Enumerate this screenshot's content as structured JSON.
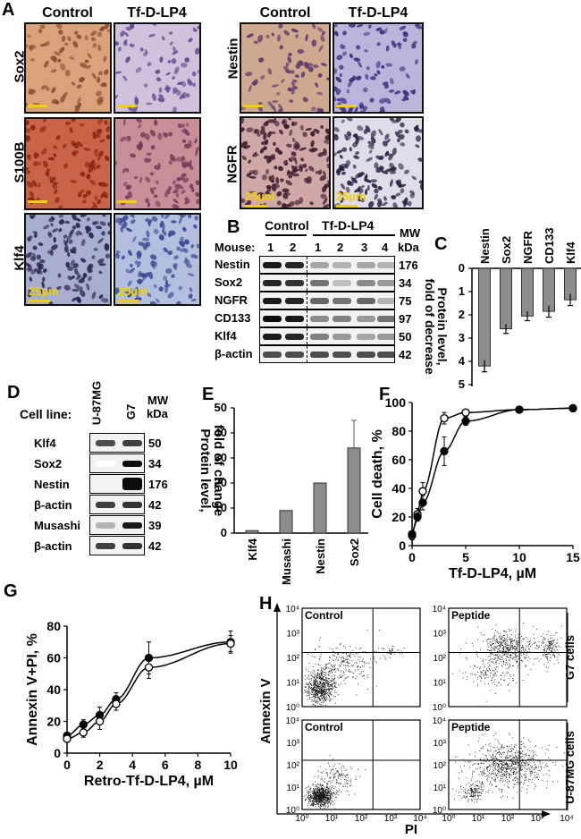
{
  "panel_letters": {
    "a": "A",
    "b": "B",
    "c": "C",
    "d": "D",
    "e": "E",
    "f": "F",
    "g": "G",
    "h": "H"
  },
  "panel_a": {
    "left_headers": [
      "Control",
      "Tf-D-LP4"
    ],
    "right_headers": [
      "Control",
      "Tf-D-LP4"
    ],
    "left_rows": [
      "Sox2",
      "S100B",
      "Klf4"
    ],
    "right_rows": [
      "Nestin",
      "NGFR"
    ],
    "scale_label": "25µm"
  },
  "panel_b": {
    "group_control": "Control",
    "group_treated": "Tf-D-LP4",
    "mw_header": "MW",
    "mw_unit": "kDa",
    "mouse_label": "Mouse:",
    "mouse_numbers": [
      "1",
      "2",
      "1",
      "2",
      "3",
      "4"
    ],
    "rows": [
      {
        "name": "Nestin",
        "mw": "176"
      },
      {
        "name": "Sox2",
        "mw": "34"
      },
      {
        "name": "NGFR",
        "mw": "75"
      },
      {
        "name": "CD133",
        "mw": "97"
      },
      {
        "name": "Klf4",
        "mw": "50"
      },
      {
        "name": "β-actin",
        "mw": "42"
      }
    ]
  },
  "panel_d": {
    "cell_line_label": "Cell line:",
    "lines": [
      "U-87MG",
      "G7"
    ],
    "mw_header": "MW",
    "mw_unit": "kDa",
    "rows": [
      {
        "name": "Klf4",
        "mw": "50"
      },
      {
        "name": "Sox2",
        "mw": "34"
      },
      {
        "name": "Nestin",
        "mw": "176"
      },
      {
        "name": "β-actin",
        "mw": "42"
      },
      {
        "name": "Musashi",
        "mw": "39"
      },
      {
        "name": "β-actin",
        "mw": "42"
      }
    ]
  },
  "chart_data": [
    {
      "id": "C",
      "type": "bar",
      "categories": [
        "Nestin",
        "Sox2",
        "NGFR",
        "CD133",
        "Klf4"
      ],
      "values": [
        4.2,
        2.6,
        2.05,
        1.85,
        1.35
      ],
      "errors": [
        0.25,
        0.2,
        0.2,
        0.25,
        0.25
      ],
      "ylabel_lines": [
        "Protein level,",
        "fold of decrease"
      ],
      "ylim": [
        0,
        5
      ],
      "ticks": [
        "0",
        "1",
        "2",
        "3",
        "4",
        "5"
      ],
      "inverted": true
    },
    {
      "id": "E",
      "type": "bar",
      "categories": [
        "Klf4",
        "Musashi",
        "Nestin",
        "Sox2"
      ],
      "values": [
        1,
        9,
        20,
        34
      ],
      "errors": [
        0,
        0,
        0,
        11
      ],
      "ylabel_lines": [
        "Protein level,",
        "fold of change"
      ],
      "ylim": [
        0,
        50
      ],
      "ticks": [
        "0",
        "10",
        "20",
        "30",
        "40",
        "50"
      ]
    },
    {
      "id": "F",
      "type": "line",
      "xlabel": "Tf-D-LP4, µM",
      "ylabel": "Cell death, %",
      "xlim": [
        0,
        15
      ],
      "ylim": [
        0,
        100
      ],
      "xticks": [
        "0",
        "5",
        "10",
        "15"
      ],
      "yticks": [
        "0",
        "20",
        "40",
        "60",
        "80",
        "100"
      ],
      "series": [
        {
          "marker": "open",
          "x": [
            0,
            0.5,
            1,
            3,
            5,
            10,
            15
          ],
          "y": [
            7,
            22,
            38,
            89,
            93,
            95,
            96
          ],
          "err": [
            3,
            4,
            6,
            4,
            2,
            1,
            1
          ]
        },
        {
          "marker": "filled",
          "x": [
            0,
            0.5,
            1,
            3,
            5,
            10,
            15
          ],
          "y": [
            8,
            20,
            30,
            66,
            87,
            95,
            96
          ],
          "err": [
            2,
            3,
            5,
            10,
            3,
            1,
            1
          ]
        }
      ]
    },
    {
      "id": "G",
      "type": "line",
      "xlabel": "Retro-Tf-D-LP4, µM",
      "ylabel": "Annexin V+PI, %",
      "xlim": [
        0,
        10
      ],
      "ylim": [
        0,
        80
      ],
      "xticks": [
        "0",
        "2",
        "4",
        "6",
        "8",
        "10"
      ],
      "yticks": [
        "0",
        "20",
        "40",
        "60",
        "80"
      ],
      "series": [
        {
          "marker": "filled",
          "x": [
            0,
            1,
            2,
            3,
            5,
            10
          ],
          "y": [
            11,
            18,
            24,
            34,
            60,
            70
          ],
          "err": [
            2,
            3,
            5,
            4,
            10,
            7
          ]
        },
        {
          "marker": "open",
          "x": [
            0,
            1,
            2,
            3,
            5,
            10
          ],
          "y": [
            9,
            13,
            20,
            31,
            54,
            69
          ],
          "err": [
            2,
            3,
            5,
            4,
            7,
            5
          ]
        }
      ]
    },
    {
      "id": "H",
      "type": "scatter",
      "ylabel": "Annexin V",
      "xlabel": "PI",
      "ticks": [
        "10⁰",
        "10¹",
        "10²",
        "10³",
        "10⁴"
      ],
      "plots": [
        {
          "title": "Control",
          "side": "G7 cells"
        },
        {
          "title": "Peptide",
          "side": "G7 cells"
        },
        {
          "title": "Control",
          "side": "U-87MG cells"
        },
        {
          "title": "Peptide",
          "side": "U-87MG cells"
        }
      ],
      "side_labels": [
        "G7 cells",
        "U-87MG cells"
      ]
    }
  ]
}
